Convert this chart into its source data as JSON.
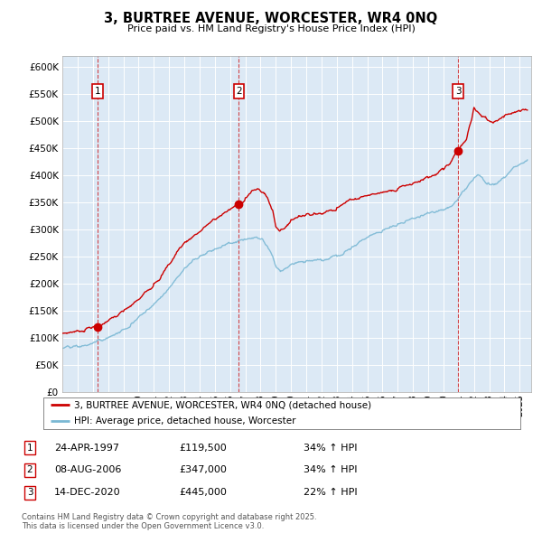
{
  "title": "3, BURTREE AVENUE, WORCESTER, WR4 0NQ",
  "subtitle": "Price paid vs. HM Land Registry's House Price Index (HPI)",
  "bg_color": "#dce9f5",
  "line_color_red": "#cc0000",
  "line_color_blue": "#7ab8d4",
  "ylim": [
    0,
    620000
  ],
  "yticks": [
    0,
    50000,
    100000,
    150000,
    200000,
    250000,
    300000,
    350000,
    400000,
    450000,
    500000,
    550000,
    600000
  ],
  "ytick_labels": [
    "£0",
    "£50K",
    "£100K",
    "£150K",
    "£200K",
    "£250K",
    "£300K",
    "£350K",
    "£400K",
    "£450K",
    "£500K",
    "£550K",
    "£600K"
  ],
  "xlim_start": 1995.0,
  "xlim_end": 2025.75,
  "sale_points": [
    {
      "label": "1",
      "date_year": 1997.3,
      "price": 119500
    },
    {
      "label": "2",
      "date_year": 2006.58,
      "price": 347000
    },
    {
      "label": "3",
      "date_year": 2020.95,
      "price": 445000
    }
  ],
  "annotations": [
    {
      "num": "1",
      "date": "24-APR-1997",
      "price": "£119,500",
      "hpi": "34% ↑ HPI"
    },
    {
      "num": "2",
      "date": "08-AUG-2006",
      "price": "£347,000",
      "hpi": "34% ↑ HPI"
    },
    {
      "num": "3",
      "date": "14-DEC-2020",
      "price": "£445,000",
      "hpi": "22% ↑ HPI"
    }
  ],
  "legend_label_red": "3, BURTREE AVENUE, WORCESTER, WR4 0NQ (detached house)",
  "legend_label_blue": "HPI: Average price, detached house, Worcester",
  "footer": "Contains HM Land Registry data © Crown copyright and database right 2025.\nThis data is licensed under the Open Government Licence v3.0."
}
